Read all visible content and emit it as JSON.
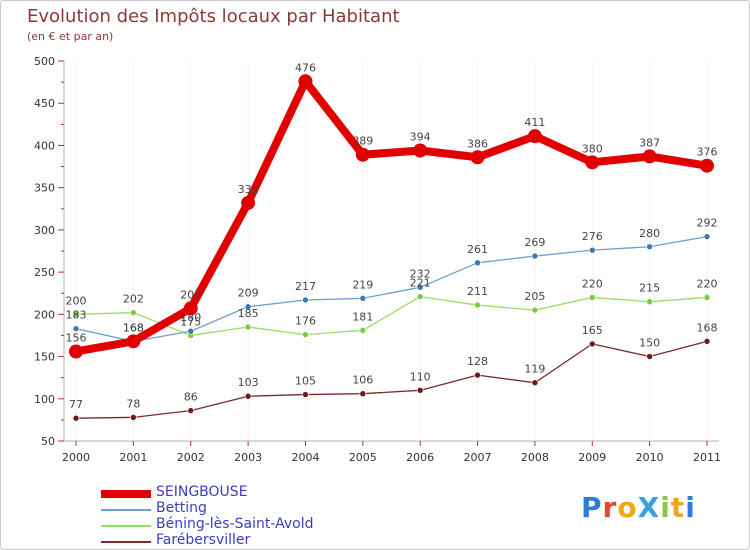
{
  "header": {
    "title": "Evolution des Impôts locaux par Habitant",
    "subtitle": "(en € et par an)"
  },
  "logo": {
    "text": "ProXiti",
    "letters": [
      "P",
      "r",
      "o",
      "X",
      "i",
      "t",
      "i"
    ],
    "letter_colors": [
      "#2a7fd4",
      "#e8452c",
      "#f1a51a",
      "#3aa0e0",
      "#8cc63f",
      "#f1a51a",
      "#2a7fd4"
    ]
  },
  "chart_data": {
    "type": "line",
    "x": [
      "2000",
      "2001",
      "2002",
      "2003",
      "2004",
      "2005",
      "2006",
      "2007",
      "2008",
      "2009",
      "2010",
      "2011"
    ],
    "ylim": [
      50,
      500
    ],
    "yticks": [
      "50",
      "100",
      "150",
      "200",
      "250",
      "300",
      "350",
      "400",
      "450",
      "500"
    ],
    "ytick_values": [
      50,
      100,
      150,
      200,
      250,
      300,
      350,
      400,
      450,
      500
    ],
    "grid": "vertical-dotted",
    "legend_position": "bottom-left",
    "series": [
      {
        "name": "SEINGBOUSE",
        "color": "#e00000",
        "emphasis": true,
        "values": [
          156,
          168,
          207,
          332,
          476,
          389,
          394,
          386,
          411,
          380,
          387,
          376
        ]
      },
      {
        "name": "Betting",
        "color": "#6fa0cc",
        "point_color": "#3a78b8",
        "values": [
          183,
          168,
          180,
          209,
          217,
          219,
          232,
          261,
          269,
          276,
          280,
          292
        ]
      },
      {
        "name": "Béning-lès-Saint-Avold",
        "color": "#99dd66",
        "point_color": "#77cc44",
        "values": [
          200,
          202,
          175,
          185,
          176,
          181,
          221,
          211,
          205,
          220,
          215,
          220
        ]
      },
      {
        "name": "Farébersviller",
        "color": "#7a2a2a",
        "point_color": "#6a1a1a",
        "values": [
          77,
          78,
          86,
          103,
          105,
          106,
          110,
          128,
          119,
          165,
          150,
          168
        ]
      }
    ]
  }
}
